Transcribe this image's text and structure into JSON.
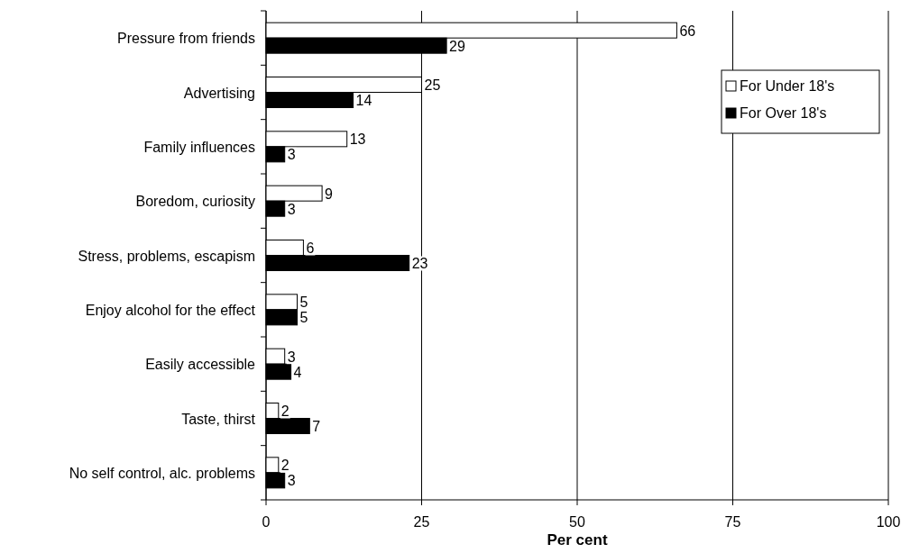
{
  "chart_data": {
    "type": "bar",
    "orientation": "horizontal",
    "xlabel": "Per cent",
    "categories": [
      "Pressure from friends",
      "Advertising",
      "Family influences",
      "Boredom, curiosity",
      "Stress, problems, escapism",
      "Enjoy alcohol for the effect",
      "Easily accessible",
      "Taste, thirst",
      "No self control, alc. problems"
    ],
    "series": [
      {
        "name": "For Under 18's",
        "color": "#ffffff",
        "values": [
          66,
          25,
          13,
          9,
          6,
          5,
          3,
          2,
          2
        ]
      },
      {
        "name": "For Over 18's",
        "color": "#000000",
        "values": [
          29,
          14,
          3,
          3,
          23,
          5,
          4,
          7,
          3
        ]
      }
    ],
    "xlim": [
      0,
      100
    ],
    "xticks": [
      0,
      25,
      50,
      75,
      100
    ],
    "grid": "x",
    "legend": "top right",
    "data_labels": true
  }
}
